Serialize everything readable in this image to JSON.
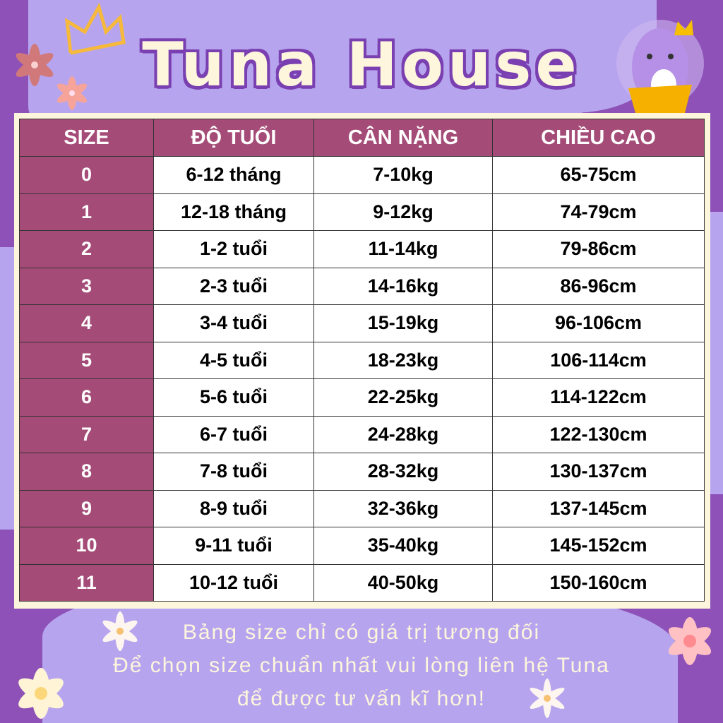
{
  "brand": {
    "title": "Tuna House"
  },
  "table": {
    "headers": [
      "SIZE",
      "ĐỘ TUỔI",
      "CÂN NẶNG",
      "CHIỀU CAO"
    ],
    "rows": [
      [
        "0",
        "6-12 tháng",
        "7-10kg",
        "65-75cm"
      ],
      [
        "1",
        "12-18 tháng",
        "9-12kg",
        "74-79cm"
      ],
      [
        "2",
        "1-2 tuổi",
        "11-14kg",
        "79-86cm"
      ],
      [
        "3",
        "2-3 tuổi",
        "14-16kg",
        "86-96cm"
      ],
      [
        "4",
        "3-4 tuổi",
        "15-19kg",
        "96-106cm"
      ],
      [
        "5",
        "4-5 tuổi",
        "18-23kg",
        "106-114cm"
      ],
      [
        "6",
        "5-6 tuổi",
        "22-25kg",
        "114-122cm"
      ],
      [
        "7",
        "6-7 tuổi",
        "24-28kg",
        "122-130cm"
      ],
      [
        "8",
        "7-8 tuổi",
        "28-32kg",
        "130-137cm"
      ],
      [
        "9",
        "8-9 tuổi",
        "32-36kg",
        "137-145cm"
      ],
      [
        "10",
        "9-11 tuổi",
        "35-40kg",
        "145-152cm"
      ],
      [
        "11",
        "10-12 tuổi",
        "40-50kg",
        "150-160cm"
      ]
    ]
  },
  "notes": [
    "Bảng size chỉ có giá trị tương đối",
    "Để chọn size chuẩn nhất vui lòng liên hệ Tuna",
    "để được tư vấn kĩ hơn!"
  ],
  "colors": {
    "background": "#8d51b7",
    "lavender": "#b6a5ee",
    "header": "#a44c77",
    "cream": "#fdf6dc"
  },
  "icons": [
    "crown-icon",
    "flower-icon",
    "mascot-icon"
  ]
}
